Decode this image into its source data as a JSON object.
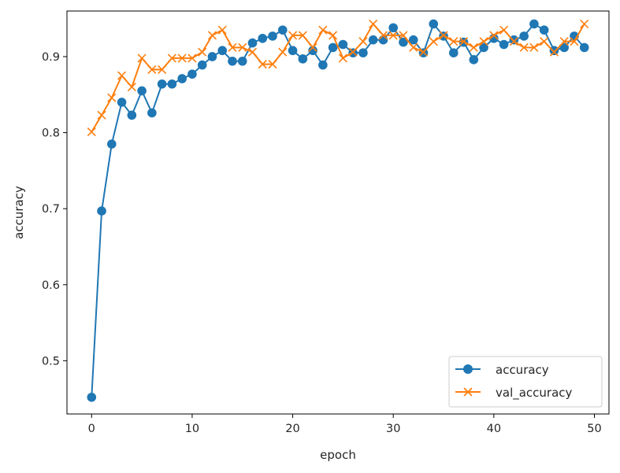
{
  "chart_data": {
    "type": "line",
    "title": "",
    "xlabel": "epoch",
    "ylabel": "accuracy",
    "xlim": [
      -2.45,
      51.45
    ],
    "ylim": [
      0.43,
      0.96
    ],
    "xticks": [
      0,
      10,
      20,
      30,
      40,
      50
    ],
    "yticks": [
      0.5,
      0.6,
      0.7,
      0.8,
      0.9
    ],
    "xtick_labels": [
      "0",
      "10",
      "20",
      "30",
      "40",
      "50"
    ],
    "ytick_labels": [
      "0.5",
      "0.6",
      "0.7",
      "0.8",
      "0.9"
    ],
    "grid": false,
    "legend_position": "lower-right",
    "x": [
      0,
      1,
      2,
      3,
      4,
      5,
      6,
      7,
      8,
      9,
      10,
      11,
      12,
      13,
      14,
      15,
      16,
      17,
      18,
      19,
      20,
      21,
      22,
      23,
      24,
      25,
      26,
      27,
      28,
      29,
      30,
      31,
      32,
      33,
      34,
      35,
      36,
      37,
      38,
      39,
      40,
      41,
      42,
      43,
      44,
      45,
      46,
      47,
      48,
      49
    ],
    "series": [
      {
        "name": "accuracy",
        "color": "#1f77b4",
        "marker": "circle",
        "values": [
          0.452,
          0.697,
          0.785,
          0.84,
          0.823,
          0.855,
          0.826,
          0.864,
          0.864,
          0.871,
          0.877,
          0.889,
          0.9,
          0.908,
          0.894,
          0.894,
          0.918,
          0.924,
          0.927,
          0.935,
          0.908,
          0.897,
          0.908,
          0.889,
          0.912,
          0.916,
          0.905,
          0.905,
          0.922,
          0.922,
          0.938,
          0.919,
          0.922,
          0.905,
          0.943,
          0.927,
          0.905,
          0.919,
          0.896,
          0.912,
          0.924,
          0.916,
          0.922,
          0.927,
          0.943,
          0.935,
          0.908,
          0.912,
          0.927,
          0.912
        ]
      },
      {
        "name": "val_accuracy",
        "color": "#ff7f0e",
        "marker": "x",
        "values": [
          0.801,
          0.823,
          0.846,
          0.875,
          0.86,
          0.898,
          0.883,
          0.883,
          0.898,
          0.898,
          0.898,
          0.906,
          0.928,
          0.935,
          0.912,
          0.912,
          0.906,
          0.89,
          0.89,
          0.906,
          0.928,
          0.928,
          0.912,
          0.935,
          0.928,
          0.898,
          0.906,
          0.92,
          0.943,
          0.928,
          0.928,
          0.928,
          0.912,
          0.906,
          0.92,
          0.928,
          0.92,
          0.92,
          0.912,
          0.92,
          0.928,
          0.935,
          0.92,
          0.912,
          0.912,
          0.92,
          0.906,
          0.92,
          0.92,
          0.943
        ]
      }
    ]
  }
}
